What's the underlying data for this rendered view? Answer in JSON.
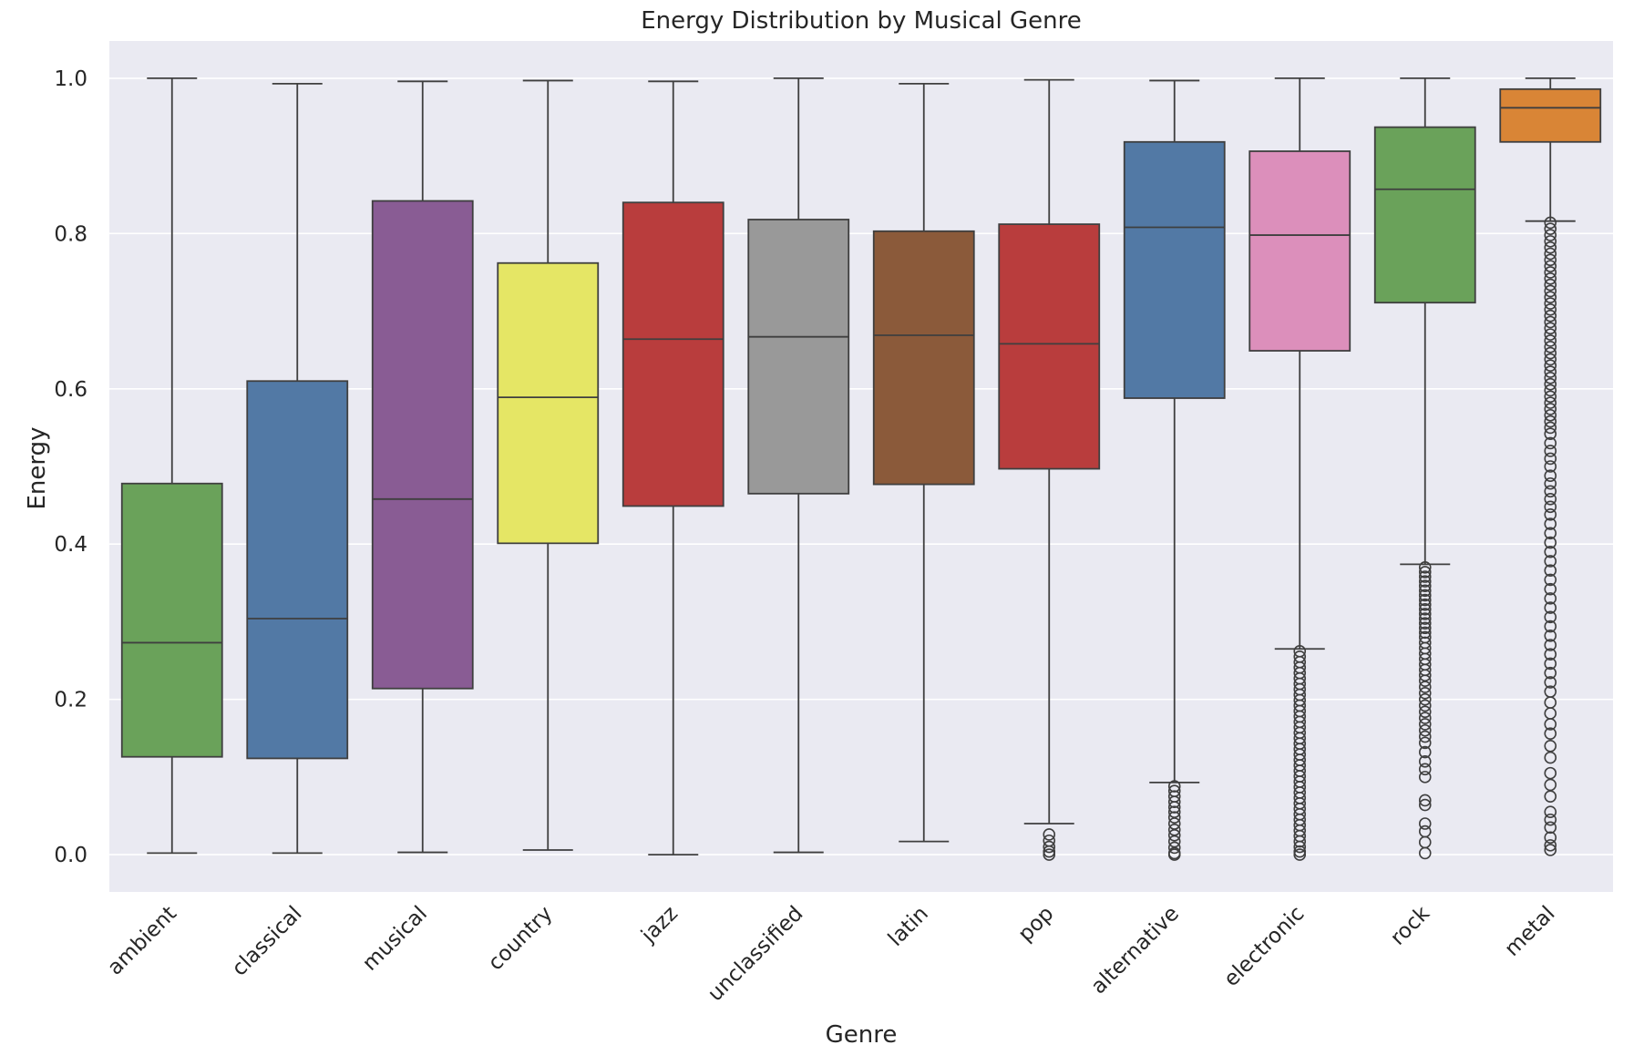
{
  "chart_data": {
    "type": "box",
    "title": "Energy Distribution by Musical Genre",
    "xlabel": "Genre",
    "ylabel": "Energy",
    "ylim": [
      -0.048,
      1.048
    ],
    "yticks": [
      0.0,
      0.2,
      0.4,
      0.6,
      0.8,
      1.0
    ],
    "ytick_labels": [
      "0.0",
      "0.2",
      "0.4",
      "0.6",
      "0.8",
      "1.0"
    ],
    "grid": true,
    "legend": "none",
    "background": "#EAEAF2",
    "categories": [
      "ambient",
      "classical",
      "musical",
      "country",
      "jazz",
      "unclassified",
      "latin",
      "pop",
      "alternative",
      "electronic",
      "rock",
      "metal"
    ],
    "boxes": [
      {
        "category": "ambient",
        "color": "#6AA25A",
        "whisker_low": 0.002,
        "q1": 0.126,
        "median": 0.273,
        "q3": 0.478,
        "whisker_high": 1.0,
        "outliers": []
      },
      {
        "category": "classical",
        "color": "#5279A5",
        "whisker_low": 0.002,
        "q1": 0.124,
        "median": 0.304,
        "q3": 0.61,
        "whisker_high": 0.993,
        "outliers": []
      },
      {
        "category": "musical",
        "color": "#895C94",
        "whisker_low": 0.003,
        "q1": 0.214,
        "median": 0.458,
        "q3": 0.842,
        "whisker_high": 0.996,
        "outliers": []
      },
      {
        "category": "country",
        "color": "#E5E665",
        "whisker_low": 0.006,
        "q1": 0.401,
        "median": 0.589,
        "q3": 0.762,
        "whisker_high": 0.997,
        "outliers": []
      },
      {
        "category": "jazz",
        "color": "#B93D3D",
        "whisker_low": 0.0,
        "q1": 0.449,
        "median": 0.664,
        "q3": 0.84,
        "whisker_high": 0.996,
        "outliers": []
      },
      {
        "category": "unclassified",
        "color": "#999999",
        "whisker_low": 0.003,
        "q1": 0.465,
        "median": 0.667,
        "q3": 0.818,
        "whisker_high": 1.0,
        "outliers": []
      },
      {
        "category": "latin",
        "color": "#8B5A3A",
        "whisker_low": 0.017,
        "q1": 0.477,
        "median": 0.669,
        "q3": 0.803,
        "whisker_high": 0.993,
        "outliers": []
      },
      {
        "category": "pop",
        "color": "#B93D3D",
        "whisker_low": 0.04,
        "q1": 0.497,
        "median": 0.658,
        "q3": 0.812,
        "whisker_high": 0.998,
        "outliers": [
          0.026,
          0.018,
          0.01,
          0.004,
          0.0
        ]
      },
      {
        "category": "alternative",
        "color": "#5279A5",
        "whisker_low": 0.093,
        "q1": 0.588,
        "median": 0.808,
        "q3": 0.918,
        "whisker_high": 0.997,
        "outliers": [
          0.088,
          0.082,
          0.075,
          0.068,
          0.061,
          0.055,
          0.048,
          0.04,
          0.032,
          0.025,
          0.017,
          0.009,
          0.002,
          0.0
        ]
      },
      {
        "category": "electronic",
        "color": "#DC8FBB",
        "whisker_low": 0.265,
        "q1": 0.649,
        "median": 0.798,
        "q3": 0.906,
        "whisker_high": 1.0,
        "outliers": [
          0.262,
          0.255,
          0.248,
          0.241,
          0.234,
          0.227,
          0.22,
          0.213,
          0.206,
          0.199,
          0.192,
          0.185,
          0.178,
          0.171,
          0.164,
          0.157,
          0.15,
          0.143,
          0.136,
          0.129,
          0.122,
          0.115,
          0.108,
          0.101,
          0.094,
          0.087,
          0.08,
          0.073,
          0.066,
          0.059,
          0.052,
          0.045,
          0.038,
          0.031,
          0.024,
          0.017,
          0.01,
          0.004,
          0.0
        ]
      },
      {
        "category": "rock",
        "color": "#6AA25A",
        "whisker_low": 0.374,
        "q1": 0.711,
        "median": 0.857,
        "q3": 0.937,
        "whisker_high": 1.0,
        "outliers": [
          0.37,
          0.364,
          0.358,
          0.352,
          0.346,
          0.34,
          0.334,
          0.328,
          0.322,
          0.316,
          0.31,
          0.304,
          0.298,
          0.292,
          0.286,
          0.28,
          0.273,
          0.266,
          0.259,
          0.252,
          0.245,
          0.238,
          0.231,
          0.224,
          0.216,
          0.208,
          0.2,
          0.192,
          0.184,
          0.176,
          0.168,
          0.16,
          0.152,
          0.144,
          0.132,
          0.12,
          0.11,
          0.1,
          0.07,
          0.064,
          0.04,
          0.03,
          0.016,
          0.002
        ]
      },
      {
        "category": "metal",
        "color": "#D98536",
        "whisker_low": 0.816,
        "q1": 0.918,
        "median": 0.962,
        "q3": 0.986,
        "whisker_high": 1.0,
        "outliers": [
          0.814,
          0.806,
          0.798,
          0.79,
          0.782,
          0.774,
          0.766,
          0.758,
          0.75,
          0.742,
          0.734,
          0.726,
          0.718,
          0.71,
          0.702,
          0.694,
          0.686,
          0.678,
          0.67,
          0.662,
          0.654,
          0.646,
          0.638,
          0.63,
          0.622,
          0.614,
          0.606,
          0.598,
          0.59,
          0.582,
          0.574,
          0.566,
          0.558,
          0.55,
          0.542,
          0.53,
          0.52,
          0.51,
          0.5,
          0.488,
          0.478,
          0.468,
          0.458,
          0.448,
          0.438,
          0.426,
          0.414,
          0.402,
          0.39,
          0.378,
          0.366,
          0.354,
          0.342,
          0.33,
          0.318,
          0.306,
          0.294,
          0.282,
          0.27,
          0.258,
          0.246,
          0.234,
          0.222,
          0.21,
          0.196,
          0.182,
          0.168,
          0.156,
          0.14,
          0.125,
          0.105,
          0.09,
          0.075,
          0.055,
          0.045,
          0.035,
          0.022,
          0.012,
          0.006
        ]
      }
    ]
  }
}
